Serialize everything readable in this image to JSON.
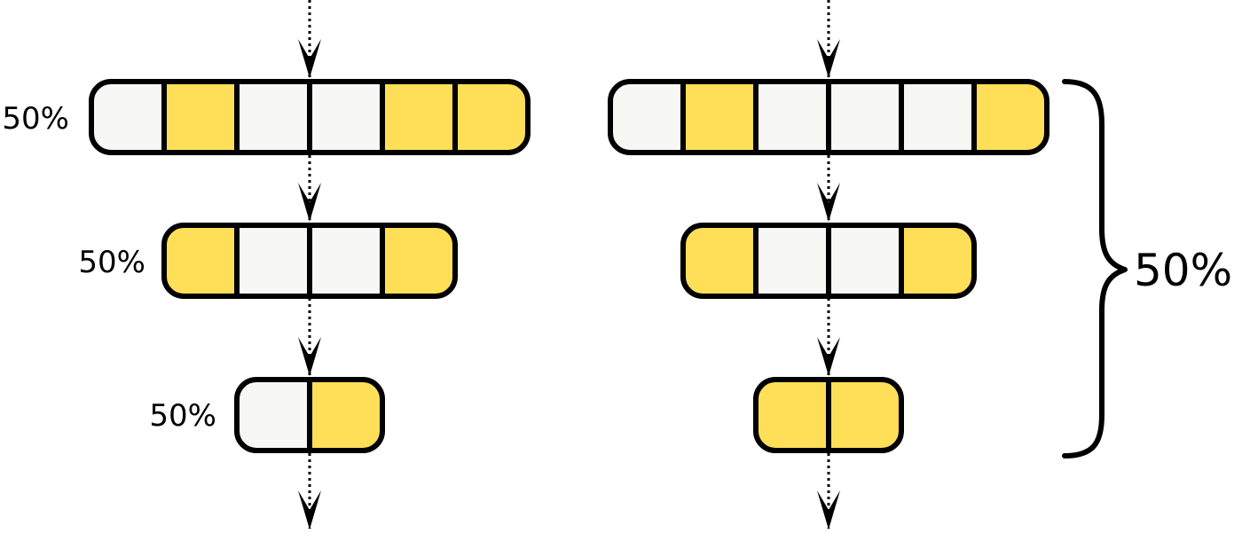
{
  "colors": {
    "filled": "#FFDF57",
    "empty": "#F7F7F5",
    "stroke": "#000000"
  },
  "left_column": {
    "rows": [
      {
        "label": "50%",
        "cells": [
          "empty",
          "filled",
          "empty",
          "empty",
          "filled",
          "filled"
        ]
      },
      {
        "label": "50%",
        "cells": [
          "filled",
          "empty",
          "empty",
          "filled"
        ]
      },
      {
        "label": "50%",
        "cells": [
          "empty",
          "filled"
        ]
      }
    ]
  },
  "right_column": {
    "rows": [
      {
        "cells": [
          "empty",
          "filled",
          "empty",
          "empty",
          "empty",
          "filled"
        ]
      },
      {
        "cells": [
          "filled",
          "empty",
          "empty",
          "filled"
        ]
      },
      {
        "cells": [
          "filled",
          "filled"
        ]
      }
    ],
    "brace_label": "50%"
  },
  "icons": {
    "flow_arrow": "arrow-down-icon",
    "brace": "right-curly-brace-icon"
  }
}
